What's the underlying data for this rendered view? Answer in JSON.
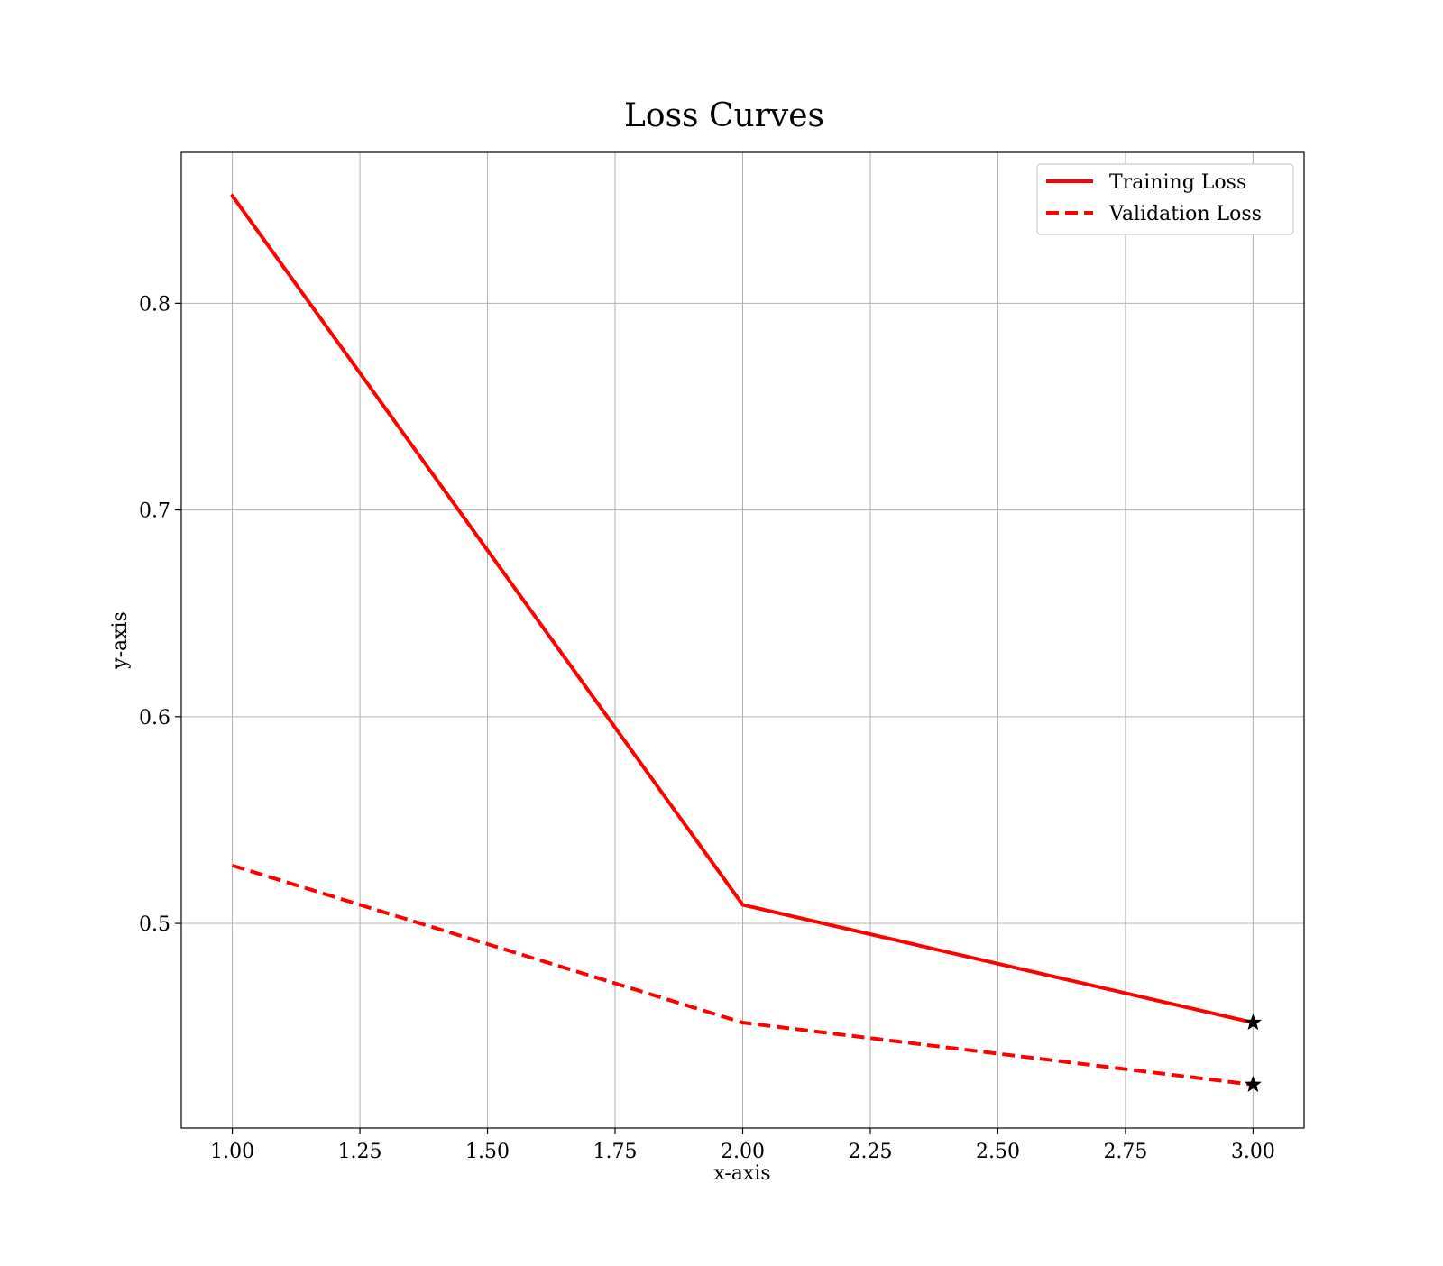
{
  "chart_data": {
    "type": "line",
    "title": "Loss Curves",
    "xlabel": "x-axis",
    "ylabel": "y-axis",
    "xlim": [
      0.9,
      3.1
    ],
    "ylim": [
      0.401,
      0.873
    ],
    "x_ticks": [
      "1.00",
      "1.25",
      "1.50",
      "1.75",
      "2.00",
      "2.25",
      "2.50",
      "2.75",
      "3.00"
    ],
    "y_ticks": [
      "0.5",
      "0.6",
      "0.7",
      "0.8"
    ],
    "grid": true,
    "legend_position": "top-right",
    "series": [
      {
        "name": "Training Loss",
        "x": [
          1,
          2,
          3
        ],
        "y": [
          0.852,
          0.509,
          0.452
        ],
        "color": "#ff0000",
        "line_style": "solid",
        "end_marker": "star"
      },
      {
        "name": "Validation Loss",
        "x": [
          1,
          2,
          3
        ],
        "y": [
          0.528,
          0.452,
          0.422
        ],
        "color": "#ff0000",
        "line_style": "dashed",
        "end_marker": "star"
      }
    ],
    "marker_color": "#000000",
    "grid_color": "#b0b0b0"
  }
}
